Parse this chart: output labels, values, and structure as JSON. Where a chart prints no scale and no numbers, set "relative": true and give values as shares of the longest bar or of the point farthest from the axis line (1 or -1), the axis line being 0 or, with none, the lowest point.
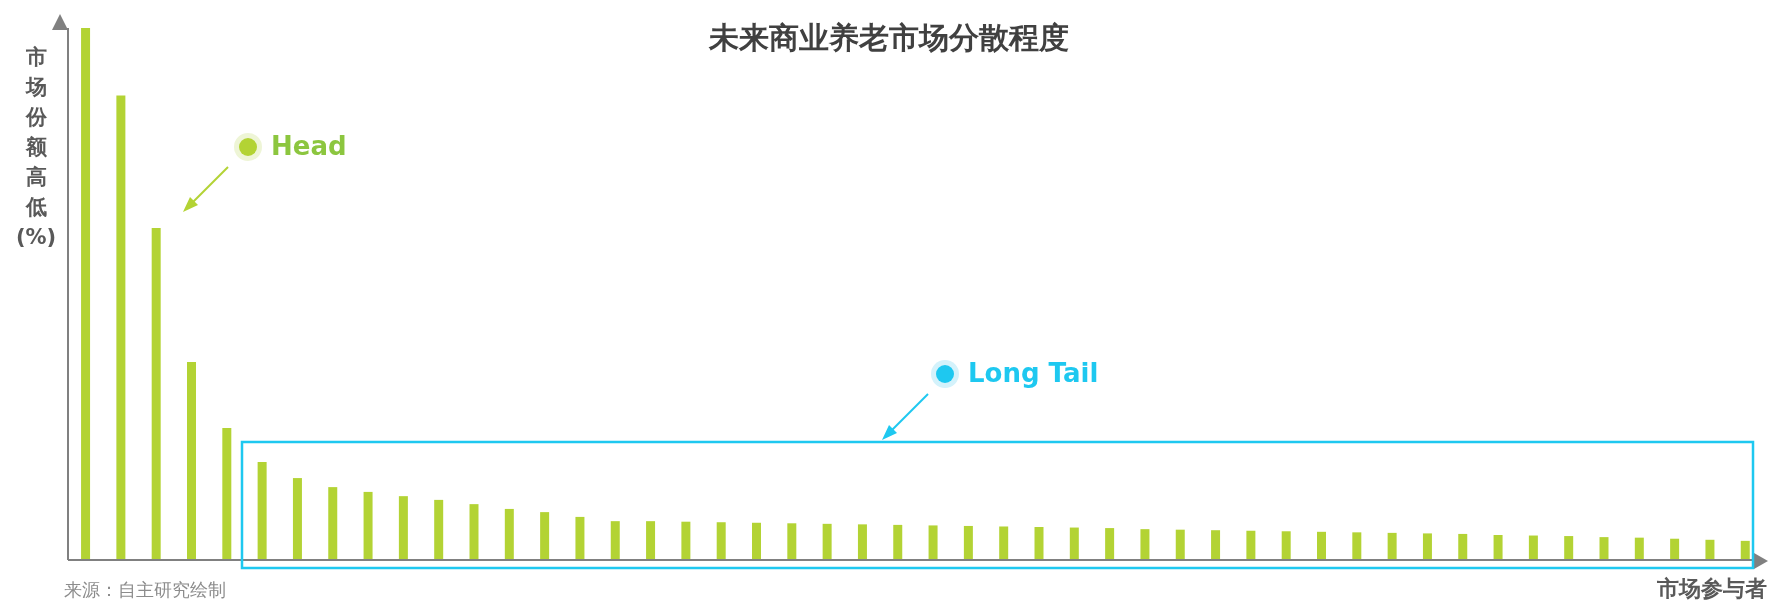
{
  "chart_data": {
    "type": "bar",
    "title": "未来商业养老市场分散程度",
    "ylabel": "市场份额高低(%)",
    "xlabel": "市场参与者",
    "relative": true,
    "color": "#b3d334",
    "grid": false,
    "legend": false,
    "categories": [
      null,
      null,
      null,
      null,
      null,
      null,
      null,
      null,
      null,
      null,
      null,
      null,
      null,
      null,
      null,
      null,
      null,
      null,
      null,
      null,
      null,
      null,
      null,
      null,
      null,
      null,
      null,
      null,
      null,
      null,
      null,
      null,
      null,
      null,
      null,
      null,
      null,
      null,
      null,
      null,
      null,
      null,
      null,
      null,
      null,
      null,
      null,
      null
    ],
    "values": [
      1,
      0.873,
      0.624,
      0.372,
      0.248,
      0.184,
      0.154,
      0.137,
      0.128,
      0.12,
      0.113,
      0.105,
      0.096,
      0.09,
      0.081,
      0.073,
      0.073,
      0.072,
      0.071,
      0.07,
      0.069,
      0.068,
      0.067,
      0.066,
      0.065,
      0.064,
      0.063,
      0.062,
      0.061,
      0.06,
      0.058,
      0.057,
      0.056,
      0.055,
      0.054,
      0.053,
      0.052,
      0.051,
      0.05,
      0.049,
      0.047,
      0.046,
      0.045,
      0.043,
      0.042,
      0.04,
      0.038,
      0.036
    ],
    "annotations": [
      "Head",
      "Long Tail",
      "来源：自主研究绘制"
    ]
  }
}
